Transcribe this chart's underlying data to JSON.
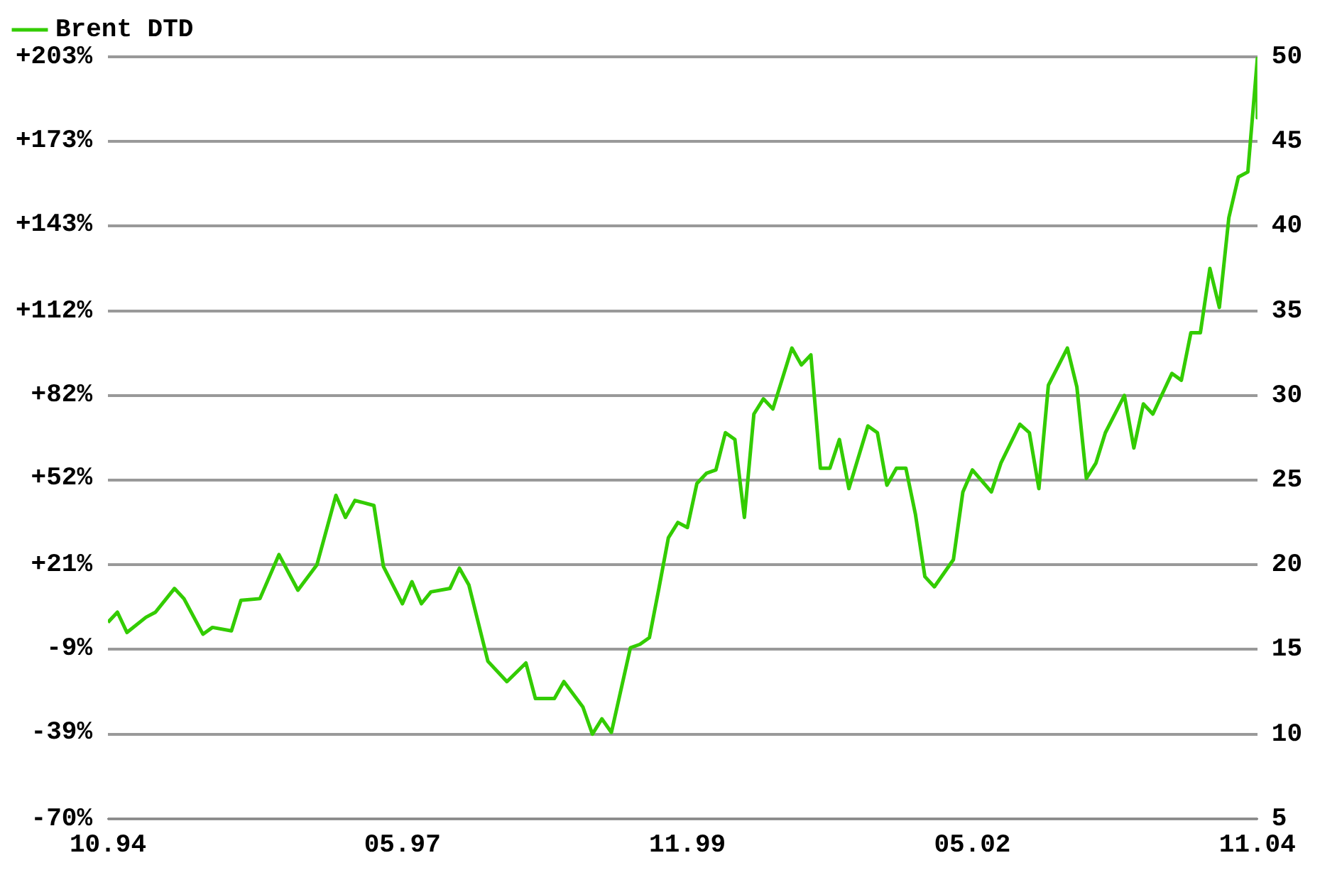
{
  "chart_data": {
    "type": "line",
    "legend": "top left",
    "grid": "y",
    "marker": "none",
    "line_style": "solid",
    "x": [
      "1994-10",
      "1994-11",
      "1994-12",
      "1995-02",
      "1995-03",
      "1995-05",
      "1995-06",
      "1995-08",
      "1995-09",
      "1995-11",
      "1995-12",
      "1996-02",
      "1996-04",
      "1996-06",
      "1996-08",
      "1996-10",
      "1996-11",
      "1996-12",
      "1997-02",
      "1997-03",
      "1997-05",
      "1997-06",
      "1997-07",
      "1997-08",
      "1997-10",
      "1997-11",
      "1997-12",
      "1998-02",
      "1998-04",
      "1998-06",
      "1998-07",
      "1998-09",
      "1998-10",
      "1998-12",
      "1999-01",
      "1999-02",
      "1999-03",
      "1999-05",
      "1999-06",
      "1999-07",
      "1999-08",
      "1999-09",
      "1999-10",
      "1999-11",
      "1999-12",
      "2000-01",
      "2000-02",
      "2000-03",
      "2000-04",
      "2000-05",
      "2000-06",
      "2000-07",
      "2000-08",
      "2000-10",
      "2000-11",
      "2000-12",
      "2001-01",
      "2001-02",
      "2001-03",
      "2001-04",
      "2001-06",
      "2001-07",
      "2001-08",
      "2001-09",
      "2001-10",
      "2001-11",
      "2001-12",
      "2002-01",
      "2002-03",
      "2002-04",
      "2002-05",
      "2002-07",
      "2002-08",
      "2002-10",
      "2002-11",
      "2002-12",
      "2003-01",
      "2003-03",
      "2003-04",
      "2003-05",
      "2003-06",
      "2003-07",
      "2003-09",
      "2003-10",
      "2003-11",
      "2003-12",
      "2004-02",
      "2004-03",
      "2004-04",
      "2004-05",
      "2004-06",
      "2004-07",
      "2004-08",
      "2004-09",
      "2004-10",
      "2004-11",
      "2004-11"
    ],
    "series": [
      {
        "name": "Brent DTD",
        "color": "#33cc00",
        "axis": "y2",
        "values": [
          16.6,
          17.2,
          16.0,
          16.9,
          17.2,
          18.6,
          18.0,
          15.9,
          16.3,
          16.1,
          17.9,
          18.0,
          20.6,
          18.5,
          20.0,
          24.1,
          22.8,
          23.8,
          23.5,
          19.9,
          17.7,
          19.0,
          17.7,
          18.4,
          18.6,
          19.8,
          18.8,
          14.3,
          13.1,
          14.2,
          12.1,
          12.1,
          13.1,
          11.6,
          10.0,
          10.9,
          10.1,
          15.1,
          15.3,
          15.7,
          18.6,
          21.6,
          22.5,
          22.2,
          24.8,
          25.4,
          25.6,
          27.8,
          27.4,
          22.8,
          28.9,
          29.8,
          29.2,
          32.8,
          31.8,
          32.4,
          25.7,
          25.7,
          27.4,
          24.5,
          28.2,
          27.8,
          24.7,
          25.7,
          25.7,
          23.0,
          19.3,
          18.7,
          20.3,
          24.3,
          25.6,
          24.3,
          26.0,
          28.3,
          27.8,
          24.5,
          30.6,
          32.8,
          30.5,
          25.1,
          26.0,
          27.8,
          30.0,
          26.9,
          29.5,
          28.9,
          31.3,
          30.9,
          33.7,
          33.7,
          37.5,
          35.2,
          40.5,
          42.9,
          43.2,
          49.9,
          46.4
        ]
      }
    ],
    "xlim": [
      "1994-10",
      "2004-11"
    ],
    "xticks": [
      {
        "value": "1994-10",
        "label": "10.94"
      },
      {
        "value": "1997-05",
        "label": "05.97"
      },
      {
        "value": "1999-11",
        "label": "11.99"
      },
      {
        "value": "2002-05",
        "label": "05.02"
      },
      {
        "value": "2004-11",
        "label": "11.04"
      }
    ],
    "ylim": [
      -70,
      203
    ],
    "yticks": [
      {
        "value": -70,
        "label": "-70%"
      },
      {
        "value": -39,
        "label": "-39%"
      },
      {
        "value": -9,
        "label": "-9%"
      },
      {
        "value": 21,
        "label": "+21%"
      },
      {
        "value": 52,
        "label": "+52%"
      },
      {
        "value": 82,
        "label": "+82%"
      },
      {
        "value": 112,
        "label": "+112%"
      },
      {
        "value": 143,
        "label": "+143%"
      },
      {
        "value": 173,
        "label": "+173%"
      },
      {
        "value": 203,
        "label": "+203%"
      }
    ],
    "y2lim": [
      5,
      50
    ],
    "y2ticks": [
      5,
      10,
      15,
      20,
      25,
      30,
      35,
      40,
      45,
      50
    ]
  }
}
